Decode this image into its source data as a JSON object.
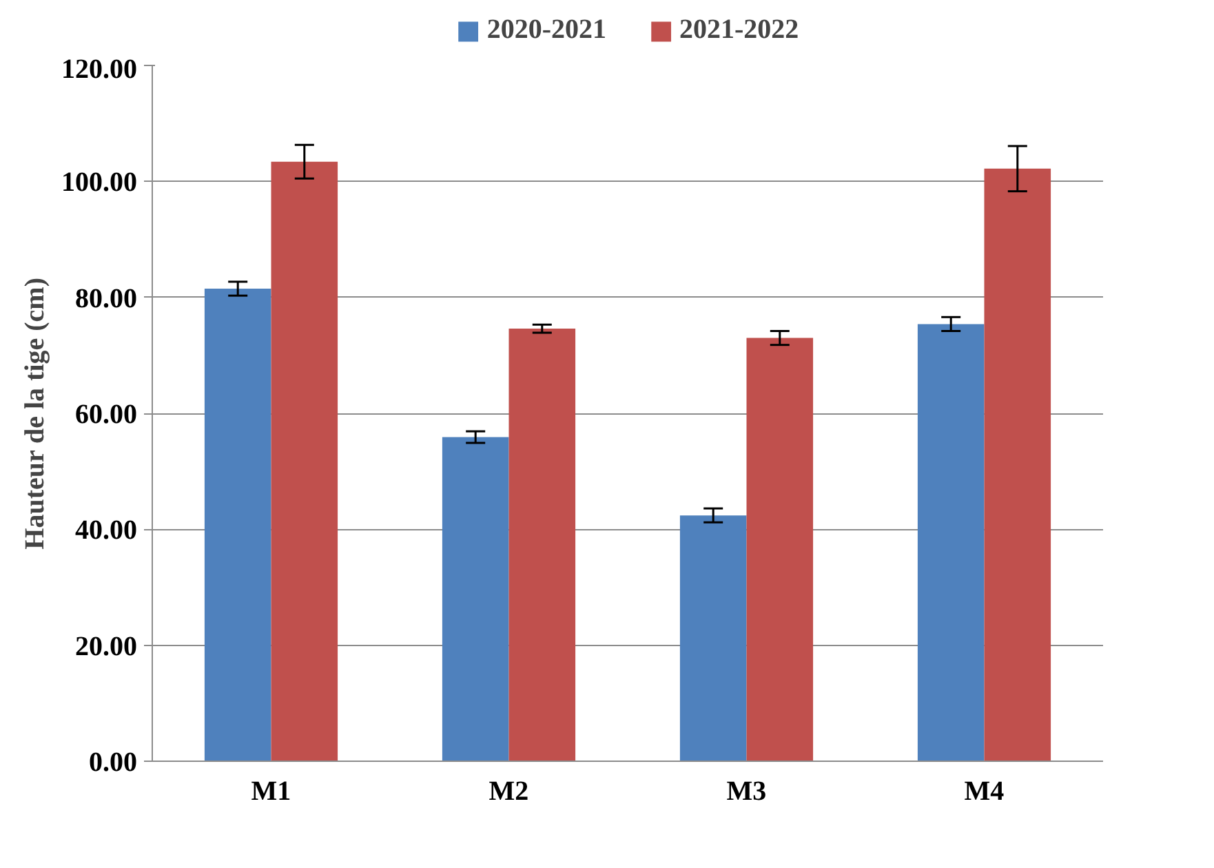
{
  "chart_data": {
    "type": "bar",
    "ylabel": "Hauteur de la tige (cm)",
    "categories": [
      "M1",
      "M2",
      "M3",
      "M4"
    ],
    "series": [
      {
        "name": "2020-2021",
        "color": "#4f81bd",
        "values": [
          81.5,
          55.9,
          42.4,
          75.4
        ],
        "errors": [
          1.2,
          1.0,
          1.2,
          1.2
        ]
      },
      {
        "name": "2021-2022",
        "color": "#c0504d",
        "values": [
          103.4,
          74.6,
          73.0,
          102.2
        ],
        "errors": [
          2.9,
          0.7,
          1.2,
          3.9
        ]
      }
    ],
    "ylim": [
      0,
      120
    ],
    "yticks": [
      {
        "value": 0,
        "label": "0.00"
      },
      {
        "value": 20,
        "label": "20.00"
      },
      {
        "value": 40,
        "label": "40.00"
      },
      {
        "value": 60,
        "label": "60.00"
      },
      {
        "value": 80,
        "label": "80.00"
      },
      {
        "value": 100,
        "label": "100.00"
      },
      {
        "value": 120,
        "label": "120.00"
      }
    ],
    "grid": "y",
    "legend": "top"
  }
}
